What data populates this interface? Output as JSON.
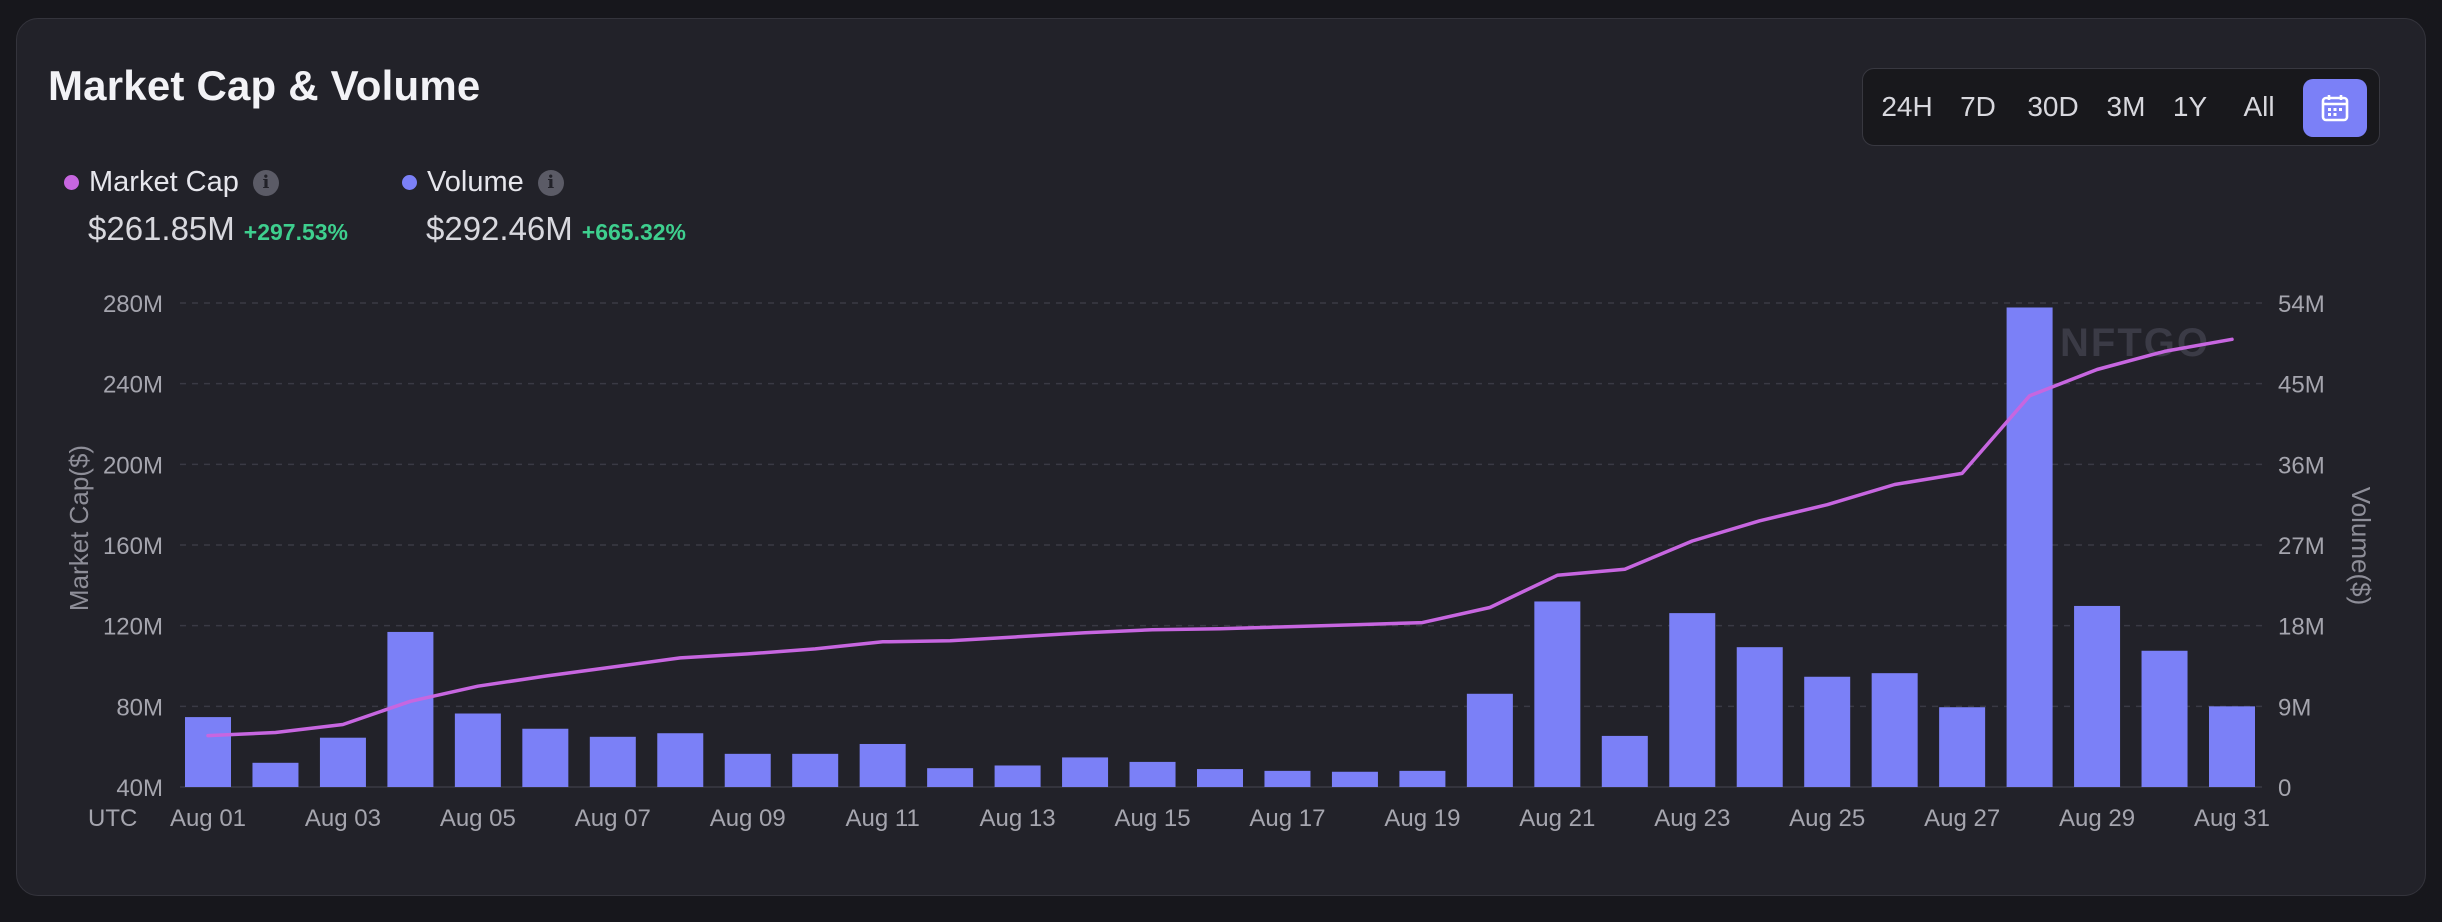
{
  "header": {
    "title": "Market Cap & Volume",
    "ranges": [
      "24H",
      "7D",
      "30D",
      "3M",
      "1Y",
      "All"
    ],
    "calendar_icon": "calendar-icon"
  },
  "legend": {
    "market_cap": {
      "label": "Market Cap",
      "value": "$261.85M",
      "change": "+297.53%",
      "color": "#c766e0"
    },
    "volume": {
      "label": "Volume",
      "value": "$292.46M",
      "change": "+665.32%",
      "color": "#7b80f7"
    },
    "info_icon": "info-icon"
  },
  "watermark": "NFTGO",
  "chart_data": {
    "type": "bar+line",
    "title": "Market Cap & Volume",
    "timezone_label": "UTC",
    "x_tick_labels": [
      "Aug 01",
      "Aug 03",
      "Aug 05",
      "Aug 07",
      "Aug 09",
      "Aug 11",
      "Aug 13",
      "Aug 15",
      "Aug 17",
      "Aug 19",
      "Aug 21",
      "Aug 23",
      "Aug 25",
      "Aug 27",
      "Aug 29",
      "Aug 31"
    ],
    "categories": [
      "Aug 01",
      "Aug 02",
      "Aug 03",
      "Aug 04",
      "Aug 05",
      "Aug 06",
      "Aug 07",
      "Aug 08",
      "Aug 09",
      "Aug 10",
      "Aug 11",
      "Aug 12",
      "Aug 13",
      "Aug 14",
      "Aug 15",
      "Aug 16",
      "Aug 17",
      "Aug 18",
      "Aug 19",
      "Aug 20",
      "Aug 21",
      "Aug 22",
      "Aug 23",
      "Aug 24",
      "Aug 25",
      "Aug 26",
      "Aug 27",
      "Aug 28",
      "Aug 29",
      "Aug 30",
      "Aug 31"
    ],
    "left_axis": {
      "label": "Market Cap($)",
      "ticks": [
        "40M",
        "80M",
        "120M",
        "160M",
        "200M",
        "240M",
        "280M"
      ],
      "range": [
        40,
        280
      ]
    },
    "right_axis": {
      "label": "Volume($)",
      "ticks": [
        "0",
        "9M",
        "18M",
        "27M",
        "36M",
        "45M",
        "54M"
      ],
      "range": [
        0,
        54
      ]
    },
    "series": [
      {
        "name": "Volume",
        "type": "bar",
        "axis": "right",
        "unit": "M",
        "values": [
          7.8,
          2.7,
          5.5,
          17.3,
          8.2,
          6.5,
          5.6,
          6.0,
          3.7,
          3.7,
          4.8,
          2.1,
          2.4,
          3.3,
          2.8,
          2.0,
          1.8,
          1.7,
          1.8,
          10.4,
          20.7,
          5.7,
          19.4,
          15.6,
          12.3,
          12.7,
          8.9,
          53.5,
          20.2,
          15.2,
          9.0
        ],
        "color": "#7b80f7"
      },
      {
        "name": "Market Cap",
        "type": "line",
        "axis": "left",
        "unit": "M",
        "values": [
          65.5,
          67,
          71,
          82.5,
          90,
          95,
          99.5,
          104,
          106,
          108.5,
          112,
          112.5,
          114.5,
          116.5,
          118,
          118.5,
          119.5,
          120.5,
          121.5,
          129,
          145,
          148,
          162,
          172,
          180,
          190,
          195.5,
          234,
          247,
          256,
          262
        ],
        "color": "#c766e0"
      }
    ],
    "grid": true
  }
}
